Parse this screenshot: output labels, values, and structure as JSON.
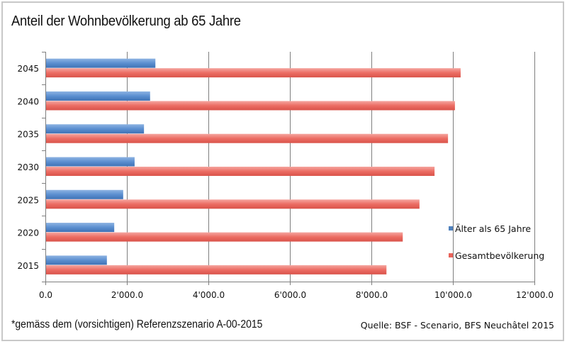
{
  "chart_data": {
    "type": "bar",
    "orientation": "horizontal",
    "title": "Anteil der Wohnbevölkerung ab 65 Jahre",
    "xlabel": "",
    "ylabel": "",
    "categories": [
      "2015",
      "2020",
      "2025",
      "2030",
      "2035",
      "2040",
      "2045"
    ],
    "series": [
      {
        "name": "Älter als 65 Jahre",
        "color": "#4f81bd",
        "values": [
          1510,
          1690,
          1910,
          2190,
          2420,
          2570,
          2700
        ]
      },
      {
        "name": "Gesamtbevölkerung",
        "color": "#e8635a",
        "values": [
          8370,
          8770,
          9180,
          9550,
          9880,
          10050,
          10190
        ]
      }
    ],
    "xlim": [
      0,
      12000
    ],
    "xticks": [
      0,
      2000,
      4000,
      6000,
      8000,
      10000,
      12000
    ],
    "xtick_labels": [
      "0.0",
      "2'000.0",
      "4'000.0",
      "6'000.0",
      "8'000.0",
      "10'000.0",
      "12'000.0"
    ],
    "grid": "vertical",
    "legend": {
      "position": "right",
      "entries": [
        "Älter als 65 Jahre",
        "Gesamtbevölkerung"
      ]
    }
  },
  "footnote": "*gemäss dem (vorsichtigen) Referenzszenario A-00-2015",
  "source": "Quelle: BSF - Scenario, BFS Neuchâtel 2015"
}
